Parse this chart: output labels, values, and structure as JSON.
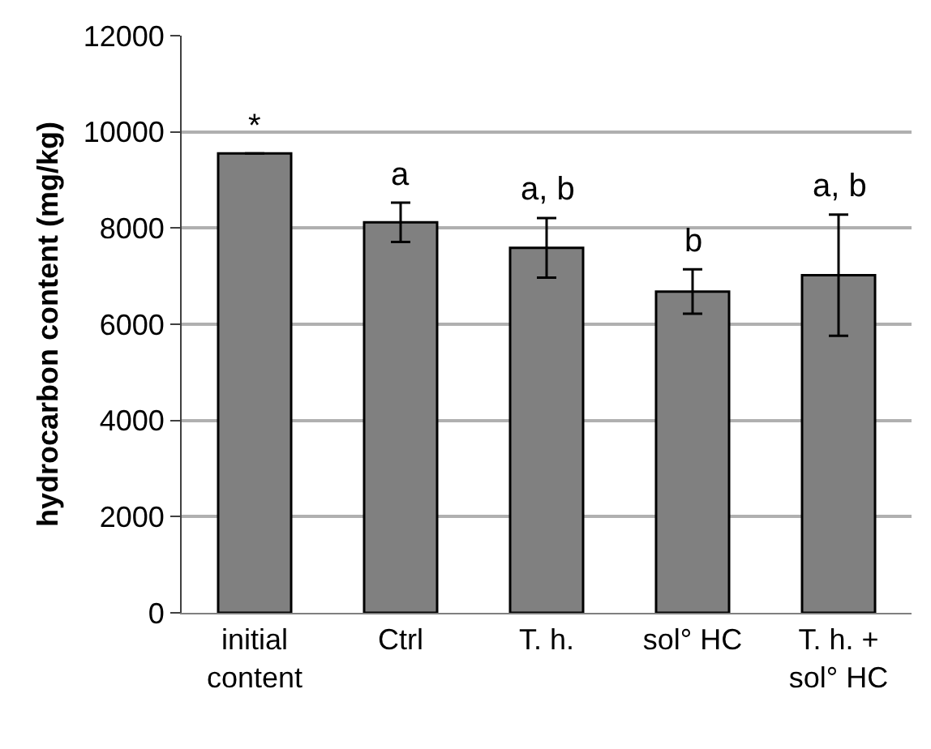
{
  "chart_data": {
    "type": "bar",
    "ylabel": "hydrocarbon content (mg/kg)",
    "categories": [
      "initial content",
      "Ctrl",
      "T. h.",
      "sol° HC",
      "T. h. + sol° HC"
    ],
    "values": [
      9550,
      8120,
      7590,
      6680,
      7020
    ],
    "errors": [
      null,
      410,
      620,
      460,
      1260
    ],
    "color": "#808080",
    "ylim": [
      0,
      12000
    ],
    "yticks": [
      0,
      2000,
      4000,
      6000,
      8000,
      10000,
      12000
    ],
    "grid": "y",
    "legend": false,
    "annotations": [
      {
        "text": "*",
        "x": "initial content",
        "y": 9550
      },
      {
        "text": "a",
        "x": "Ctrl",
        "y": 8530
      },
      {
        "text": "a, b",
        "x": "T. h.",
        "y": 8210
      },
      {
        "text": "b",
        "x": "sol° HC",
        "y": 7140
      },
      {
        "text": "a, b",
        "x": "T. h. + sol° HC",
        "y": 8280
      }
    ]
  }
}
